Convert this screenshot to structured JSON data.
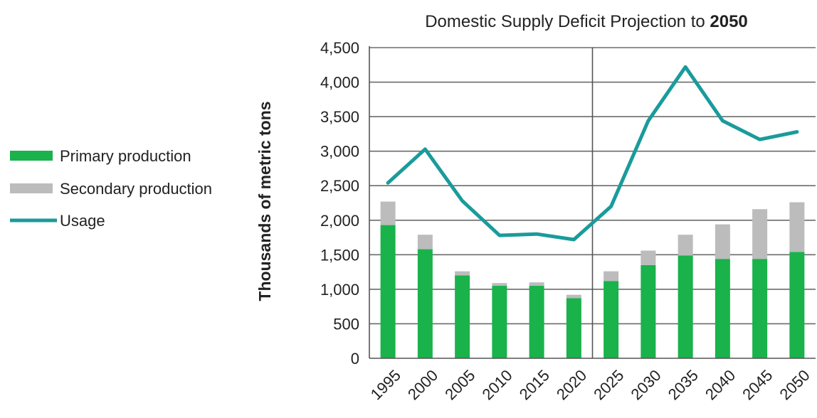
{
  "chart_data": {
    "type": "bar",
    "title": "Domestic Supply Deficit Projection to",
    "title_bold": "2050",
    "ylabel": "Thousands of metric tons",
    "xlabel": "",
    "ylim": [
      0,
      4500
    ],
    "yticks": [
      0,
      500,
      1000,
      1500,
      2000,
      2500,
      3000,
      3500,
      4000,
      4500
    ],
    "ytick_labels": [
      "0",
      "500",
      "1,000",
      "1,500",
      "2,000",
      "2,500",
      "3,000",
      "3,500",
      "4,000",
      "4,500"
    ],
    "categories": [
      "1995",
      "2000",
      "2005",
      "2010",
      "2015",
      "2020",
      "2025",
      "2030",
      "2035",
      "2040",
      "2045",
      "2050"
    ],
    "stacked": true,
    "grid": true,
    "legend_position": "left",
    "divider_after_category": "2020",
    "series": [
      {
        "name": "Primary production",
        "kind": "bar",
        "color": "#19b24b",
        "values": [
          1930,
          1580,
          1200,
          1050,
          1050,
          870,
          1120,
          1350,
          1490,
          1440,
          1440,
          1540
        ]
      },
      {
        "name": "Secondary production",
        "kind": "bar",
        "color": "#bcbcbc",
        "values": [
          340,
          210,
          60,
          40,
          50,
          50,
          140,
          210,
          300,
          500,
          720,
          720
        ]
      },
      {
        "name": "Usage",
        "kind": "line",
        "color": "#1a9b9b",
        "values": [
          2540,
          3030,
          2280,
          1780,
          1800,
          1720,
          2200,
          3440,
          4220,
          3440,
          3170,
          3280
        ]
      }
    ]
  }
}
